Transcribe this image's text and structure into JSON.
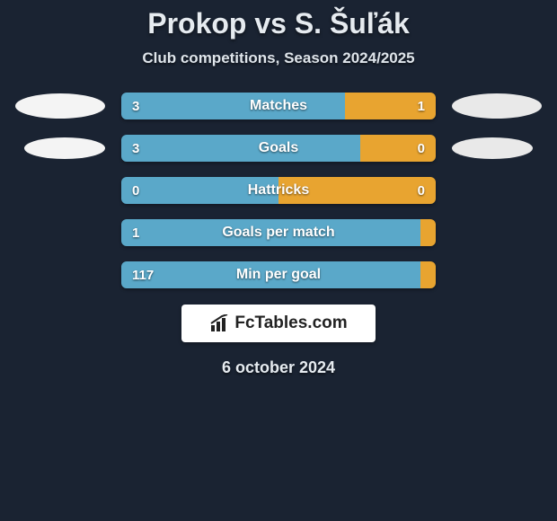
{
  "title": "Prokop vs S. Šuľák",
  "subtitle": "Club competitions, Season 2024/2025",
  "date": "6 october 2024",
  "colors": {
    "background": "#1a2332",
    "left_bar": "#5aa8c9",
    "right_bar": "#e8a430",
    "oval_left": "#f4f4f4",
    "oval_right": "#e9e9e9",
    "logo_bg": "#ffffff",
    "logo_text": "#222222"
  },
  "logo": {
    "text": "FcTables.com",
    "icon": "bar-chart-icon"
  },
  "rows": [
    {
      "label": "Matches",
      "left_value": "3",
      "right_value": "1",
      "left_pct": 71,
      "show_left_oval": true,
      "show_right_oval": true,
      "oval_size_left": "normal",
      "oval_size_right": "normal"
    },
    {
      "label": "Goals",
      "left_value": "3",
      "right_value": "0",
      "left_pct": 76,
      "show_left_oval": true,
      "show_right_oval": true,
      "oval_size_left": "small",
      "oval_size_right": "small"
    },
    {
      "label": "Hattricks",
      "left_value": "0",
      "right_value": "0",
      "left_pct": 50,
      "show_left_oval": false,
      "show_right_oval": false,
      "oval_size_left": "normal",
      "oval_size_right": "normal"
    },
    {
      "label": "Goals per match",
      "left_value": "1",
      "right_value": "",
      "left_pct": 95,
      "show_left_oval": false,
      "show_right_oval": false,
      "oval_size_left": "normal",
      "oval_size_right": "normal"
    },
    {
      "label": "Min per goal",
      "left_value": "117",
      "right_value": "",
      "left_pct": 95,
      "show_left_oval": false,
      "show_right_oval": false,
      "oval_size_left": "normal",
      "oval_size_right": "normal"
    }
  ]
}
